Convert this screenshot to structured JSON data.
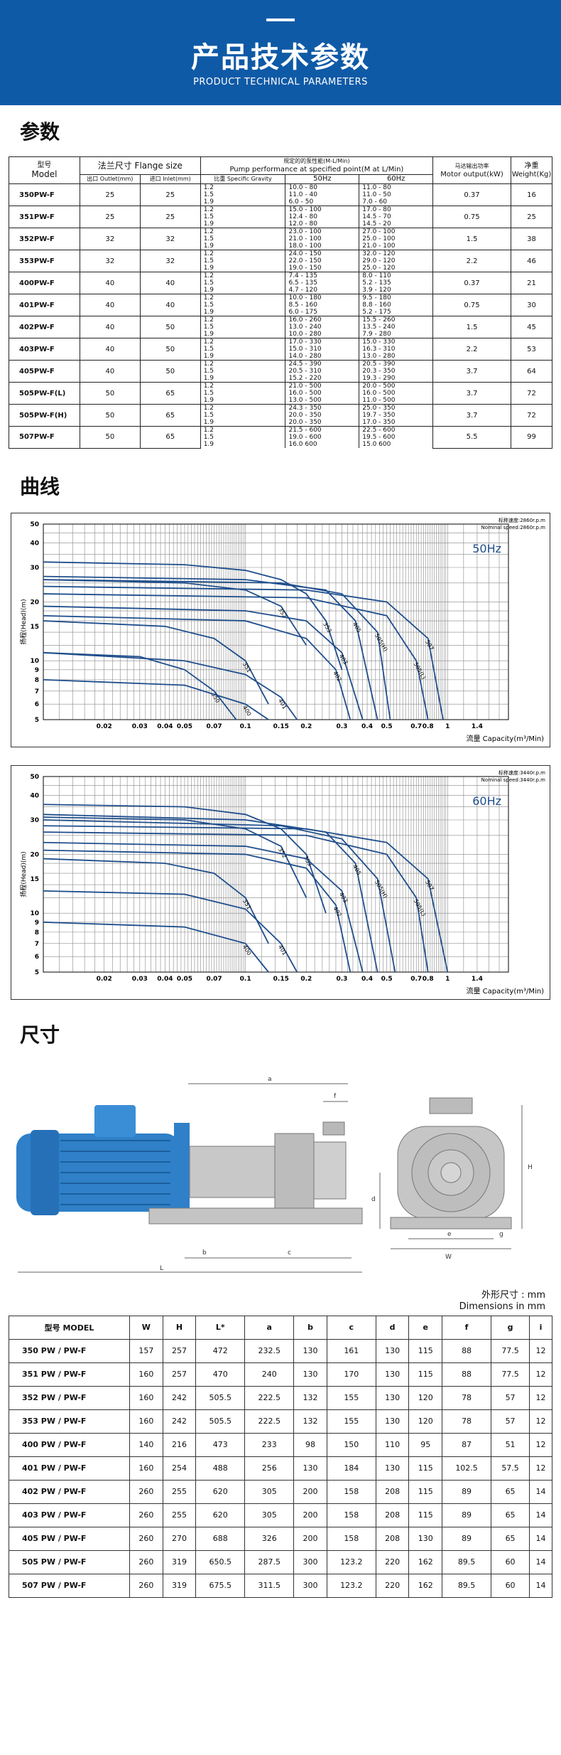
{
  "banner": {
    "title": "产品技术参数",
    "subtitle": "PRODUCT TECHNICAL PARAMETERS"
  },
  "sections": {
    "params": "参数",
    "curves": "曲线",
    "dimensions": "尺寸"
  },
  "spec_table": {
    "h_model_cn": "型号",
    "h_model_en": "Model",
    "h_flange": "法兰尺寸 Flange size",
    "h_outlet": "出口 Outlet(mm)",
    "h_inlet": "进口 Inlet(mm)",
    "h_perf_cn": "规定的的泵性能(M-L/Min)",
    "h_perf_en": "Pump performance at specified point(M at L/Min)",
    "h_gravity": "比重 Specific Gravity",
    "h_50": "50Hz",
    "h_60": "60Hz",
    "h_motor_cn": "马达输出功率",
    "h_motor_en": "Motor output(kW)",
    "h_weight_cn": "净重",
    "h_weight_en": "Weight(Kg)",
    "rows": [
      {
        "model": "350PW-F",
        "outlet": "25",
        "inlet": "25",
        "motor": "0.37",
        "weight": "16",
        "sub": [
          [
            "1.2",
            "10.0 - 80",
            "11.0 - 80"
          ],
          [
            "1.5",
            "11.0 - 40",
            "11.0 - 50"
          ],
          [
            "1.9",
            "6.0 - 50",
            "7.0 - 60"
          ]
        ]
      },
      {
        "model": "351PW-F",
        "outlet": "25",
        "inlet": "25",
        "motor": "0.75",
        "weight": "25",
        "sub": [
          [
            "1.2",
            "15.0 - 100",
            "17.0 - 80"
          ],
          [
            "1.5",
            "12.4 - 80",
            "14.5 - 70"
          ],
          [
            "1.9",
            "12.0 - 80",
            "14.5 - 20"
          ]
        ]
      },
      {
        "model": "352PW-F",
        "outlet": "32",
        "inlet": "32",
        "motor": "1.5",
        "weight": "38",
        "sub": [
          [
            "1.2",
            "23.0 - 100",
            "27.0 - 100"
          ],
          [
            "1.5",
            "21.0 - 100",
            "25.0 - 100"
          ],
          [
            "1.9",
            "18.0 - 100",
            "21.0 - 100"
          ]
        ]
      },
      {
        "model": "353PW-F",
        "outlet": "32",
        "inlet": "32",
        "motor": "2.2",
        "weight": "46",
        "sub": [
          [
            "1.2",
            "24.0 - 150",
            "32.0 - 120"
          ],
          [
            "1.5",
            "22.0 - 150",
            "29.0 - 120"
          ],
          [
            "1.9",
            "19.0 - 150",
            "25.0 - 120"
          ]
        ]
      },
      {
        "model": "400PW-F",
        "outlet": "40",
        "inlet": "40",
        "motor": "0.37",
        "weight": "21",
        "sub": [
          [
            "1.2",
            "7.4 - 135",
            "8.0 - 110"
          ],
          [
            "1.5",
            "6.5 - 135",
            "5.2 - 135"
          ],
          [
            "1.9",
            "4.7 - 120",
            "3.9 - 120"
          ]
        ]
      },
      {
        "model": "401PW-F",
        "outlet": "40",
        "inlet": "40",
        "motor": "0.75",
        "weight": "30",
        "sub": [
          [
            "1.2",
            "10.0 - 180",
            "9.5 - 180"
          ],
          [
            "1.5",
            "8.5 - 160",
            "8.8 - 160"
          ],
          [
            "1.9",
            "6.0 - 175",
            "5.2 - 175"
          ]
        ]
      },
      {
        "model": "402PW-F",
        "outlet": "40",
        "inlet": "50",
        "motor": "1.5",
        "weight": "45",
        "sub": [
          [
            "1.2",
            "16.0 - 260",
            "15.5 - 260"
          ],
          [
            "1.5",
            "13.0 - 240",
            "13.5 - 240"
          ],
          [
            "1.9",
            "10.0 - 280",
            "7.9 - 280"
          ]
        ]
      },
      {
        "model": "403PW-F",
        "outlet": "40",
        "inlet": "50",
        "motor": "2.2",
        "weight": "53",
        "sub": [
          [
            "1.2",
            "17.0 - 330",
            "15.0 - 330"
          ],
          [
            "1.5",
            "15.0 - 310",
            "16.3 - 310"
          ],
          [
            "1.9",
            "14.0 - 280",
            "13.0 - 280"
          ]
        ]
      },
      {
        "model": "405PW-F",
        "outlet": "40",
        "inlet": "50",
        "motor": "3.7",
        "weight": "64",
        "sub": [
          [
            "1.2",
            "24.5 - 390",
            "20.5 - 390"
          ],
          [
            "1.5",
            "20.5 - 310",
            "20.3 - 350"
          ],
          [
            "1.9",
            "15.2 - 220",
            "19.3 - 290"
          ]
        ]
      },
      {
        "model": "505PW-F(L)",
        "outlet": "50",
        "inlet": "65",
        "motor": "3.7",
        "weight": "72",
        "sub": [
          [
            "1.2",
            "21.0 - 500",
            "20.0 - 500"
          ],
          [
            "1.5",
            "16.0 - 500",
            "16.0 - 500"
          ],
          [
            "1.9",
            "13.0 - 500",
            "11.0 - 500"
          ]
        ]
      },
      {
        "model": "505PW-F(H)",
        "outlet": "50",
        "inlet": "65",
        "motor": "3.7",
        "weight": "72",
        "sub": [
          [
            "1.2",
            "24.3 - 350",
            "25.0 - 350"
          ],
          [
            "1.5",
            "20.0 - 350",
            "19.7 - 350"
          ],
          [
            "1.9",
            "20.0 - 350",
            "17.0 - 350"
          ]
        ]
      },
      {
        "model": "507PW-F",
        "outlet": "50",
        "inlet": "65",
        "motor": "5.5",
        "weight": "99",
        "sub": [
          [
            "1.2",
            "21.5 - 600",
            "22.5 - 600"
          ],
          [
            "1.5",
            "19.0 - 600",
            "19.5 - 600"
          ],
          [
            "1.9",
            "16.0 600",
            "15.0 600"
          ]
        ]
      }
    ]
  },
  "chart_data": [
    {
      "type": "line",
      "ylabel": "扬程(Head)(m)",
      "xlabel": "流量 Capacity(m³/Min)",
      "freq_label": "50Hz",
      "speed_cn": "标称速度:2860r.p.m",
      "speed_en": "Nominal speed:2860r.p.m",
      "y_ticks": [
        "5",
        "6",
        "7",
        "8",
        "9",
        "10",
        "15",
        "20",
        "30",
        "40",
        "50"
      ],
      "x_ticks": [
        "0.02",
        "0.03",
        "0.04",
        "0.05",
        "0.07",
        "0.1",
        "0.15",
        "0.2",
        "0.3",
        "0.4",
        "0.5",
        "0.7",
        "0.8",
        "1",
        "1.4"
      ],
      "xlim": [
        0.01,
        2.0
      ],
      "ylim": [
        5,
        50
      ],
      "scale": "log-log",
      "grid": true,
      "series": [
        {
          "name": "353",
          "x": [
            0.01,
            0.05,
            0.1,
            0.15,
            0.2,
            0.25,
            0.3
          ],
          "y": [
            32,
            31,
            29,
            26,
            22,
            16,
            9
          ]
        },
        {
          "name": "352",
          "x": [
            0.01,
            0.05,
            0.1,
            0.15,
            0.2
          ],
          "y": [
            26,
            25,
            23,
            19,
            12
          ]
        },
        {
          "name": "351",
          "x": [
            0.01,
            0.04,
            0.07,
            0.1,
            0.13
          ],
          "y": [
            16,
            15,
            13,
            10,
            6
          ]
        },
        {
          "name": "350",
          "x": [
            0.01,
            0.03,
            0.05,
            0.07,
            0.09
          ],
          "y": [
            11,
            10.5,
            9,
            7,
            5
          ]
        },
        {
          "name": "401",
          "x": [
            0.01,
            0.05,
            0.1,
            0.15,
            0.18
          ],
          "y": [
            11,
            10,
            8.5,
            6.5,
            5
          ]
        },
        {
          "name": "400",
          "x": [
            0.01,
            0.05,
            0.1,
            0.13
          ],
          "y": [
            8,
            7.5,
            6,
            5
          ]
        },
        {
          "name": "402",
          "x": [
            0.01,
            0.1,
            0.2,
            0.28,
            0.33
          ],
          "y": [
            17,
            16,
            13,
            9,
            5
          ]
        },
        {
          "name": "403",
          "x": [
            0.01,
            0.1,
            0.2,
            0.3,
            0.38
          ],
          "y": [
            19,
            18,
            16,
            11,
            5
          ]
        },
        {
          "name": "405",
          "x": [
            0.01,
            0.1,
            0.25,
            0.35,
            0.45
          ],
          "y": [
            27,
            26,
            23,
            16,
            5
          ]
        },
        {
          "name": "505(H)",
          "x": [
            0.01,
            0.15,
            0.3,
            0.45,
            0.52
          ],
          "y": [
            26,
            25,
            22,
            14,
            5
          ]
        },
        {
          "name": "505(L)",
          "x": [
            0.01,
            0.2,
            0.5,
            0.7,
            0.8
          ],
          "y": [
            22,
            21,
            17,
            10,
            5
          ]
        },
        {
          "name": "507",
          "x": [
            0.01,
            0.2,
            0.5,
            0.8,
            0.95
          ],
          "y": [
            24,
            23,
            20,
            13,
            5
          ]
        }
      ]
    },
    {
      "type": "line",
      "ylabel": "扬程(Head)(m)",
      "xlabel": "流量 Capacity(m³/Min)",
      "freq_label": "60Hz",
      "speed_cn": "标称速度:3440r.p.m",
      "speed_en": "Nominal speed:3440r.p.m",
      "y_ticks": [
        "5",
        "6",
        "7",
        "8",
        "9",
        "10",
        "15",
        "20",
        "30",
        "40",
        "50"
      ],
      "x_ticks": [
        "0.02",
        "0.03",
        "0.04",
        "0.05",
        "0.07",
        "0.1",
        "0.15",
        "0.2",
        "0.3",
        "0.4",
        "0.5",
        "0.7",
        "0.8",
        "1",
        "1.4"
      ],
      "xlim": [
        0.01,
        2.0
      ],
      "ylim": [
        5,
        50
      ],
      "scale": "log-log",
      "grid": true,
      "series": [
        {
          "name": "353",
          "x": [
            0.01,
            0.05,
            0.1,
            0.15,
            0.2,
            0.25
          ],
          "y": [
            36,
            35,
            32,
            27,
            20,
            10
          ]
        },
        {
          "name": "352",
          "x": [
            0.01,
            0.05,
            0.1,
            0.15,
            0.2
          ],
          "y": [
            31,
            30,
            27,
            22,
            12
          ]
        },
        {
          "name": "351",
          "x": [
            0.01,
            0.04,
            0.07,
            0.1,
            0.13
          ],
          "y": [
            19,
            18,
            16,
            12,
            7
          ]
        },
        {
          "name": "401",
          "x": [
            0.01,
            0.05,
            0.1,
            0.15,
            0.18
          ],
          "y": [
            13,
            12.5,
            10.5,
            7,
            5
          ]
        },
        {
          "name": "400",
          "x": [
            0.01,
            0.05,
            0.1,
            0.13
          ],
          "y": [
            9,
            8.5,
            7,
            5
          ]
        },
        {
          "name": "402",
          "x": [
            0.01,
            0.1,
            0.2,
            0.28,
            0.33
          ],
          "y": [
            21,
            20,
            17,
            11,
            5
          ]
        },
        {
          "name": "403",
          "x": [
            0.01,
            0.1,
            0.2,
            0.3,
            0.38
          ],
          "y": [
            23,
            22,
            19,
            13,
            5
          ]
        },
        {
          "name": "405",
          "x": [
            0.01,
            0.1,
            0.25,
            0.35,
            0.45
          ],
          "y": [
            32,
            30,
            26,
            18,
            5
          ]
        },
        {
          "name": "505(H)",
          "x": [
            0.01,
            0.15,
            0.3,
            0.45,
            0.55
          ],
          "y": [
            30,
            28,
            24,
            15,
            5
          ]
        },
        {
          "name": "505(L)",
          "x": [
            0.01,
            0.2,
            0.5,
            0.7,
            0.8
          ],
          "y": [
            26,
            25,
            20,
            12,
            5
          ]
        },
        {
          "name": "507",
          "x": [
            0.01,
            0.2,
            0.5,
            0.8,
            1.0
          ],
          "y": [
            28,
            27,
            23,
            15,
            5
          ]
        }
      ]
    }
  ],
  "dimension_labels": {
    "a": "a",
    "f": "f",
    "b": "b",
    "c": "c",
    "L": "L",
    "d": "d",
    "e": "e",
    "H": "H",
    "W": "W",
    "g": "g"
  },
  "dim_table": {
    "unit_cn": "外形尺寸 : mm",
    "unit_en": "Dimensions in mm",
    "headers": [
      "型号 MODEL",
      "W",
      "H",
      "L*",
      "a",
      "b",
      "c",
      "d",
      "e",
      "f",
      "g",
      "i"
    ],
    "rows": [
      [
        "350 PW / PW-F",
        "157",
        "257",
        "472",
        "232.5",
        "130",
        "161",
        "130",
        "115",
        "88",
        "77.5",
        "12"
      ],
      [
        "351 PW / PW-F",
        "160",
        "257",
        "470",
        "240",
        "130",
        "170",
        "130",
        "115",
        "88",
        "77.5",
        "12"
      ],
      [
        "352 PW / PW-F",
        "160",
        "242",
        "505.5",
        "222.5",
        "132",
        "155",
        "130",
        "120",
        "78",
        "57",
        "12"
      ],
      [
        "353 PW / PW-F",
        "160",
        "242",
        "505.5",
        "222.5",
        "132",
        "155",
        "130",
        "120",
        "78",
        "57",
        "12"
      ],
      [
        "400 PW / PW-F",
        "140",
        "216",
        "473",
        "233",
        "98",
        "150",
        "110",
        "95",
        "87",
        "51",
        "12"
      ],
      [
        "401 PW / PW-F",
        "160",
        "254",
        "488",
        "256",
        "130",
        "184",
        "130",
        "115",
        "102.5",
        "57.5",
        "12"
      ],
      [
        "402 PW / PW-F",
        "260",
        "255",
        "620",
        "305",
        "200",
        "158",
        "208",
        "115",
        "89",
        "65",
        "14"
      ],
      [
        "403 PW / PW-F",
        "260",
        "255",
        "620",
        "305",
        "200",
        "158",
        "208",
        "115",
        "89",
        "65",
        "14"
      ],
      [
        "405 PW / PW-F",
        "260",
        "270",
        "688",
        "326",
        "200",
        "158",
        "208",
        "130",
        "89",
        "65",
        "14"
      ],
      [
        "505 PW / PW-F",
        "260",
        "319",
        "650.5",
        "287.5",
        "300",
        "123.2",
        "220",
        "162",
        "89.5",
        "60",
        "14"
      ],
      [
        "507 PW / PW-F",
        "260",
        "319",
        "675.5",
        "311.5",
        "300",
        "123.2",
        "220",
        "162",
        "89.5",
        "60",
        "14"
      ]
    ]
  },
  "colors": {
    "banner": "#0f5aa6",
    "curve": "#1f4e8c",
    "motor": "#2f80c8",
    "pump": "#bfbfbf"
  }
}
